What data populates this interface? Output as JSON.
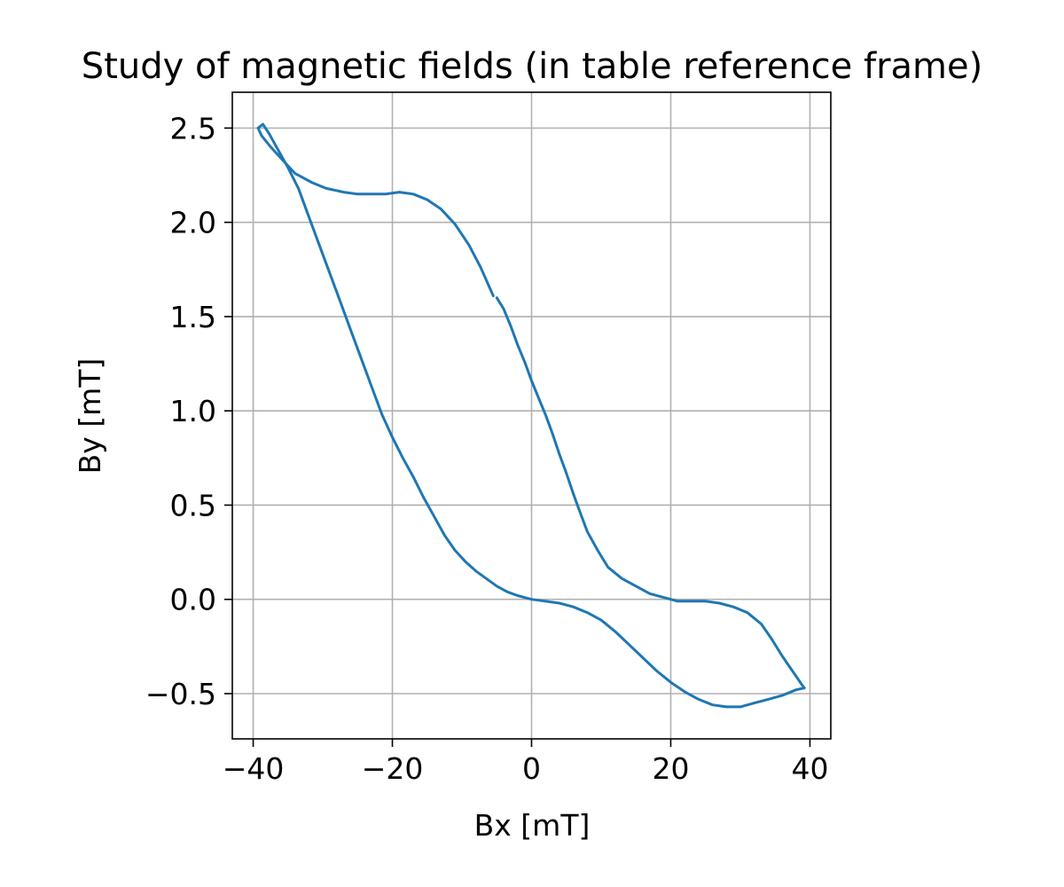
{
  "chart_data": {
    "type": "line",
    "title": "Study of magnetic fields (in table reference frame)",
    "xlabel": "Bx [mT]",
    "ylabel": "By [mT]",
    "xlim": [
      -43,
      43
    ],
    "ylim": [
      -0.74,
      2.69
    ],
    "x_ticks": [
      -40,
      -20,
      0,
      20,
      40
    ],
    "y_ticks": [
      -0.5,
      0.0,
      0.5,
      1.0,
      1.5,
      2.0,
      2.5
    ],
    "x_tick_labels": [
      "−40",
      "−20",
      "0",
      "20",
      "40"
    ],
    "y_tick_labels": [
      "−0.5",
      "0.0",
      "0.5",
      "1.0",
      "1.5",
      "2.0",
      "2.5"
    ],
    "grid": true,
    "series": [
      {
        "color": "#1f77b4",
        "segments": [
          [
            [
              -5.5,
              1.61
            ],
            [
              -7.3,
              1.76
            ],
            [
              -9.0,
              1.88
            ],
            [
              -11.0,
              1.99
            ],
            [
              -13.0,
              2.07
            ],
            [
              -15.0,
              2.12
            ],
            [
              -17.0,
              2.15
            ],
            [
              -19.0,
              2.16
            ],
            [
              -21.0,
              2.15
            ],
            [
              -23.0,
              2.15
            ],
            [
              -25.0,
              2.15
            ],
            [
              -27.0,
              2.16
            ],
            [
              -29.5,
              2.18
            ],
            [
              -31.5,
              2.21
            ],
            [
              -34.0,
              2.26
            ],
            [
              -36.0,
              2.34
            ],
            [
              -37.5,
              2.4
            ],
            [
              -38.8,
              2.46
            ],
            [
              -39.3,
              2.5
            ],
            [
              -38.6,
              2.52
            ],
            [
              -37.7,
              2.47
            ],
            [
              -36.5,
              2.39
            ],
            [
              -35.0,
              2.29
            ],
            [
              -33.5,
              2.18
            ],
            [
              -32.0,
              2.03
            ],
            [
              -30.5,
              1.88
            ],
            [
              -29.0,
              1.73
            ],
            [
              -27.5,
              1.58
            ],
            [
              -26.0,
              1.43
            ],
            [
              -24.5,
              1.28
            ],
            [
              -23.0,
              1.13
            ],
            [
              -21.5,
              0.98
            ],
            [
              -20.0,
              0.86
            ],
            [
              -18.5,
              0.75
            ],
            [
              -17.0,
              0.65
            ],
            [
              -15.5,
              0.54
            ],
            [
              -14.0,
              0.44
            ],
            [
              -12.5,
              0.34
            ],
            [
              -11.0,
              0.26
            ],
            [
              -9.5,
              0.2
            ],
            [
              -8.0,
              0.15
            ],
            [
              -6.5,
              0.11
            ],
            [
              -5.0,
              0.07
            ],
            [
              -3.5,
              0.04
            ],
            [
              -2.0,
              0.02
            ],
            [
              0.0,
              0.0
            ],
            [
              2.0,
              -0.01
            ],
            [
              4.0,
              -0.02
            ],
            [
              6.0,
              -0.04
            ],
            [
              8.0,
              -0.07
            ],
            [
              10.0,
              -0.11
            ],
            [
              12.0,
              -0.17
            ],
            [
              14.0,
              -0.24
            ],
            [
              16.0,
              -0.31
            ],
            [
              18.0,
              -0.38
            ],
            [
              20.0,
              -0.44
            ],
            [
              22.0,
              -0.49
            ],
            [
              24.0,
              -0.53
            ],
            [
              26.0,
              -0.56
            ],
            [
              28.0,
              -0.57
            ],
            [
              30.0,
              -0.57
            ],
            [
              32.0,
              -0.55
            ],
            [
              34.0,
              -0.53
            ],
            [
              36.0,
              -0.51
            ],
            [
              38.0,
              -0.48
            ],
            [
              39.2,
              -0.47
            ],
            [
              38.8,
              -0.45
            ],
            [
              37.5,
              -0.38
            ],
            [
              36.0,
              -0.3
            ],
            [
              34.5,
              -0.21
            ],
            [
              33.0,
              -0.13
            ],
            [
              31.0,
              -0.07
            ],
            [
              29.0,
              -0.04
            ],
            [
              27.0,
              -0.02
            ],
            [
              25.0,
              -0.01
            ],
            [
              23.0,
              -0.01
            ],
            [
              21.0,
              -0.01
            ],
            [
              19.0,
              0.01
            ],
            [
              17.0,
              0.03
            ],
            [
              15.0,
              0.07
            ],
            [
              13.0,
              0.11
            ],
            [
              11.0,
              0.17
            ],
            [
              9.5,
              0.26
            ],
            [
              8.0,
              0.36
            ],
            [
              7.0,
              0.46
            ],
            [
              6.0,
              0.56
            ],
            [
              5.0,
              0.67
            ],
            [
              4.0,
              0.77
            ],
            [
              3.0,
              0.88
            ],
            [
              2.0,
              0.98
            ],
            [
              1.0,
              1.07
            ],
            [
              0.0,
              1.16
            ],
            [
              -1.0,
              1.26
            ],
            [
              -2.0,
              1.35
            ],
            [
              -3.0,
              1.45
            ],
            [
              -4.0,
              1.54
            ],
            [
              -5.0,
              1.6
            ]
          ]
        ]
      }
    ]
  }
}
